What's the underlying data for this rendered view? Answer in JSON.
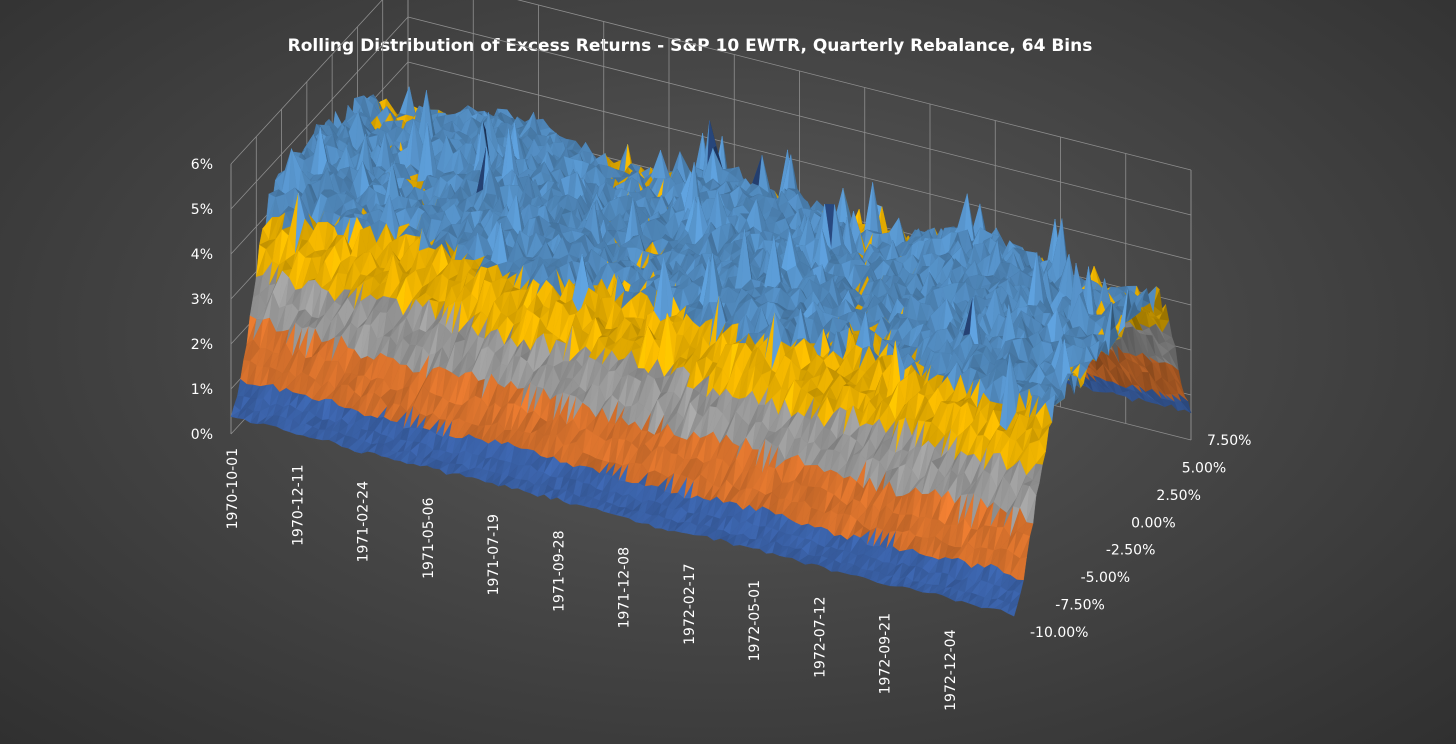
{
  "chart_data": {
    "type": "surface",
    "title": "Rolling Distribution of Excess Returns - S&P 10 EWTR, Quarterly Rebalance, 64 Bins",
    "z_axis": {
      "ticks": [
        "0%",
        "1%",
        "2%",
        "3%",
        "4%",
        "5%",
        "6%"
      ],
      "range": [
        0,
        6
      ]
    },
    "x_axis": {
      "ticks": [
        "1970-10-01",
        "1970-12-11",
        "1971-02-24",
        "1971-05-06",
        "1971-07-19",
        "1971-09-28",
        "1971-12-08",
        "1972-02-17",
        "1972-05-01",
        "1972-07-12",
        "1972-09-21",
        "1972-12-04"
      ]
    },
    "y_axis": {
      "ticks": [
        "-10.00%",
        "-7.50%",
        "-5.00%",
        "-2.50%",
        "0.00%",
        "2.50%",
        "5.00%",
        "7.50%"
      ],
      "range": [
        -10,
        7.5
      ]
    },
    "color_bands": [
      {
        "from": 0,
        "to": 1,
        "color": "#4472c4"
      },
      {
        "from": 1,
        "to": 2,
        "color": "#ed7d31"
      },
      {
        "from": 2,
        "to": 3,
        "color": "#a5a5a5"
      },
      {
        "from": 3,
        "to": 4,
        "color": "#ffc000"
      },
      {
        "from": 4,
        "to": 5,
        "color": "#5b9bd5"
      },
      {
        "from": 5,
        "to": 6,
        "color": "#264478"
      }
    ],
    "distribution_shape": {
      "plateau_start_pct": -8.0,
      "plateau_end_pct": 6.0,
      "plateau_height_pct": 4.3,
      "edge_width_pct": 0.8,
      "noise_pct": 0.35
    },
    "grid": true,
    "legend": "none"
  }
}
